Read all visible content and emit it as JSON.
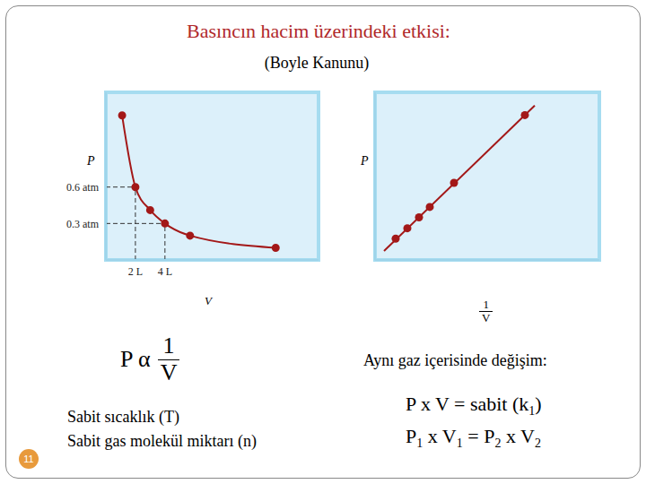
{
  "title": "Basıncın hacim üzerindeki etkisi:",
  "subtitle": "(Boyle Kanunu)",
  "chart_data": [
    {
      "type": "line",
      "x": [
        1.1,
        2,
        3,
        4,
        5.7,
        11.5
      ],
      "values": [
        1.19,
        0.6,
        0.41,
        0.3,
        0.2,
        0.1
      ],
      "color": "#a31818",
      "marker": "circle",
      "xlim": [
        0,
        14.4
      ],
      "ylim": [
        0,
        1.38
      ],
      "xticks": [
        {
          "value": 2,
          "label": "2 L"
        },
        {
          "value": 4,
          "label": "4 L"
        }
      ],
      "yticks": [
        {
          "value": 0.3,
          "label": "0.3 atm"
        },
        {
          "value": 0.6,
          "label": "0.6 atm"
        }
      ],
      "x_label": "V",
      "y_label": "P"
    },
    {
      "type": "line",
      "series": [
        {
          "type": "line",
          "marker": "none",
          "color": "#a31818",
          "x": [
            0.4,
            7.12
          ],
          "values": [
            0.53,
            9.21
          ]
        },
        {
          "type": "scatter",
          "marker": "circle",
          "color": "#a31818",
          "x": [
            0.92,
            1.44,
            1.96,
            2.44,
            3.52,
            6.68
          ],
          "values": [
            1.27,
            1.89,
            2.54,
            3.16,
            4.6,
            8.64
          ]
        }
      ],
      "xlim": [
        0,
        10
      ],
      "ylim": [
        0,
        10
      ],
      "tick_labels": false,
      "x_label": {
        "numerator": "1",
        "denominator": "V"
      },
      "y_label": "P"
    }
  ],
  "formula": {
    "lhs": "P α",
    "numerator": "1",
    "denominator": "V"
  },
  "conditions": [
    "Sabit sıcaklık (T)",
    "Sabit gas molekül miktarı (n)"
  ],
  "change_heading": "Aynı gaz içerisinde değişim:",
  "equations": [
    [
      {
        "t": "P x V = sabit (k"
      },
      {
        "t": "1",
        "sub": true
      },
      {
        "t": ")"
      }
    ],
    [
      {
        "t": "P"
      },
      {
        "t": "1",
        "sub": true
      },
      {
        "t": " x V"
      },
      {
        "t": "1",
        "sub": true
      },
      {
        "t": " = P"
      },
      {
        "t": "2",
        "sub": true
      },
      {
        "t": " x V"
      },
      {
        "t": "2",
        "sub": true
      }
    ]
  ],
  "page_number": 11
}
